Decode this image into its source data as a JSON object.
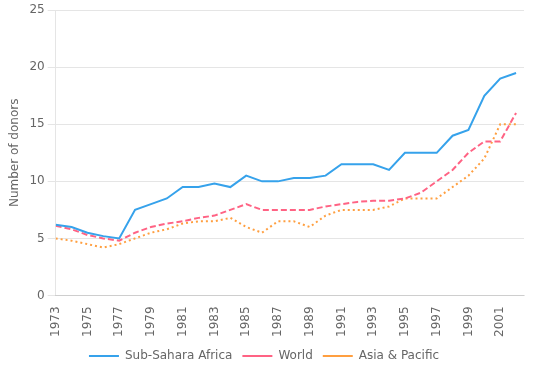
{
  "chart_data": {
    "type": "line",
    "ylabel": "Number of donors",
    "x": [
      1973,
      1974,
      1975,
      1976,
      1977,
      1978,
      1979,
      1980,
      1981,
      1982,
      1983,
      1984,
      1985,
      1986,
      1987,
      1988,
      1989,
      1990,
      1991,
      1992,
      1993,
      1994,
      1995,
      1996,
      1997,
      1998,
      1999,
      2000,
      2001,
      2002
    ],
    "series": [
      {
        "name": "Sub-Sahara Africa",
        "line_style": "solid",
        "values": [
          6.2,
          6.0,
          5.5,
          5.2,
          5.0,
          7.5,
          8.0,
          8.5,
          9.5,
          9.5,
          9.8,
          9.5,
          10.5,
          10.0,
          10.0,
          10.3,
          10.3,
          10.5,
          11.5,
          11.5,
          11.5,
          11.0,
          12.5,
          12.5,
          12.5,
          14.0,
          14.5,
          17.5,
          19.0,
          19.5
        ]
      },
      {
        "name": "World",
        "line_style": "dashed",
        "values": [
          6.1,
          5.8,
          5.3,
          5.0,
          4.8,
          5.5,
          6.0,
          6.3,
          6.5,
          6.8,
          7.0,
          7.5,
          8.0,
          7.5,
          7.5,
          7.5,
          7.5,
          7.8,
          8.0,
          8.2,
          8.3,
          8.3,
          8.5,
          9.0,
          10.0,
          11.0,
          12.5,
          13.5,
          13.5,
          16.0
        ]
      },
      {
        "name": "Asia & Pacific",
        "line_style": "dotted",
        "values": [
          5.0,
          4.8,
          4.5,
          4.2,
          4.5,
          5.0,
          5.5,
          5.8,
          6.3,
          6.5,
          6.5,
          6.8,
          6.0,
          5.5,
          6.5,
          6.5,
          6.0,
          7.0,
          7.5,
          7.5,
          7.5,
          7.8,
          8.5,
          8.5,
          8.5,
          9.5,
          10.5,
          12.0,
          15.0,
          15.0
        ]
      }
    ],
    "xlim": [
      1973,
      2002.5
    ],
    "xticks": [
      1973,
      1975,
      1977,
      1979,
      1981,
      1983,
      1985,
      1987,
      1989,
      1991,
      1993,
      1995,
      1997,
      1999,
      2001
    ],
    "ylim": [
      0,
      25
    ],
    "yticks": [
      0,
      5,
      10,
      15,
      20,
      25
    ],
    "grid": "y",
    "legend": "bottom"
  }
}
